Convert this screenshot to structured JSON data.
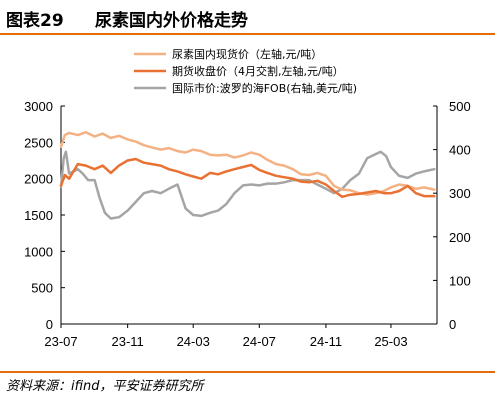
{
  "header": {
    "figure_number": "图表29",
    "title": "尿素国内外价格走势"
  },
  "footer": {
    "source": "资料来源：ifind，平安证券研究所"
  },
  "chart_data": {
    "type": "line",
    "x_tick_labels": [
      "23-07",
      "23-11",
      "24-03",
      "24-07",
      "24-11",
      "25-03"
    ],
    "x_tick_dates": [
      "2023-07-01",
      "2023-11-01",
      "2024-03-01",
      "2024-07-01",
      "2024-11-01",
      "2025-03-01"
    ],
    "x_range": [
      "2023-07-01",
      "2025-05-25"
    ],
    "y_left": {
      "range": [
        0,
        3000
      ],
      "ticks": [
        0,
        500,
        1000,
        1500,
        2000,
        2500,
        3000
      ]
    },
    "y_right": {
      "range": [
        0,
        500
      ],
      "ticks": [
        0,
        100,
        200,
        300,
        400,
        500
      ]
    },
    "legend_position": "top-center",
    "grid": false,
    "series": [
      {
        "name": "尿素国内现货价（左轴,元/吨）",
        "axis": "left",
        "color": "#f4b183",
        "points": [
          [
            "2023-07-01",
            2440
          ],
          [
            "2023-07-08",
            2600
          ],
          [
            "2023-07-16",
            2630
          ],
          [
            "2023-08-01",
            2600
          ],
          [
            "2023-08-16",
            2640
          ],
          [
            "2023-09-01",
            2580
          ],
          [
            "2023-09-16",
            2620
          ],
          [
            "2023-10-01",
            2560
          ],
          [
            "2023-10-16",
            2590
          ],
          [
            "2023-11-01",
            2540
          ],
          [
            "2023-11-16",
            2510
          ],
          [
            "2023-12-01",
            2460
          ],
          [
            "2023-12-16",
            2430
          ],
          [
            "2024-01-01",
            2400
          ],
          [
            "2024-01-16",
            2420
          ],
          [
            "2024-02-01",
            2380
          ],
          [
            "2024-02-16",
            2360
          ],
          [
            "2024-03-01",
            2400
          ],
          [
            "2024-03-16",
            2380
          ],
          [
            "2024-04-01",
            2330
          ],
          [
            "2024-04-16",
            2320
          ],
          [
            "2024-05-01",
            2330
          ],
          [
            "2024-05-16",
            2290
          ],
          [
            "2024-06-01",
            2320
          ],
          [
            "2024-06-16",
            2360
          ],
          [
            "2024-07-01",
            2330
          ],
          [
            "2024-07-16",
            2260
          ],
          [
            "2024-08-01",
            2200
          ],
          [
            "2024-08-16",
            2180
          ],
          [
            "2024-09-01",
            2130
          ],
          [
            "2024-09-16",
            2060
          ],
          [
            "2024-10-01",
            2050
          ],
          [
            "2024-10-16",
            2080
          ],
          [
            "2024-11-01",
            2040
          ],
          [
            "2024-11-16",
            1900
          ],
          [
            "2024-12-01",
            1850
          ],
          [
            "2024-12-16",
            1840
          ],
          [
            "2025-01-01",
            1800
          ],
          [
            "2025-01-16",
            1780
          ],
          [
            "2025-02-01",
            1800
          ],
          [
            "2025-02-16",
            1830
          ],
          [
            "2025-03-01",
            1880
          ],
          [
            "2025-03-16",
            1920
          ],
          [
            "2025-04-01",
            1900
          ],
          [
            "2025-04-16",
            1860
          ],
          [
            "2025-05-01",
            1880
          ],
          [
            "2025-05-20",
            1850
          ]
        ]
      },
      {
        "name": "期货收盘价（4月交割,左轴,元/吨）",
        "axis": "left",
        "color": "#e97132",
        "points": [
          [
            "2023-07-01",
            1900
          ],
          [
            "2023-07-08",
            2050
          ],
          [
            "2023-07-16",
            2000
          ],
          [
            "2023-08-01",
            2200
          ],
          [
            "2023-08-16",
            2180
          ],
          [
            "2023-09-01",
            2130
          ],
          [
            "2023-09-16",
            2180
          ],
          [
            "2023-10-01",
            2080
          ],
          [
            "2023-10-16",
            2180
          ],
          [
            "2023-11-01",
            2250
          ],
          [
            "2023-11-16",
            2270
          ],
          [
            "2023-12-01",
            2220
          ],
          [
            "2023-12-16",
            2200
          ],
          [
            "2024-01-01",
            2180
          ],
          [
            "2024-01-16",
            2130
          ],
          [
            "2024-02-01",
            2100
          ],
          [
            "2024-02-16",
            2060
          ],
          [
            "2024-03-01",
            2030
          ],
          [
            "2024-03-16",
            2000
          ],
          [
            "2024-04-01",
            2080
          ],
          [
            "2024-04-16",
            2060
          ],
          [
            "2024-05-01",
            2100
          ],
          [
            "2024-05-16",
            2130
          ],
          [
            "2024-06-01",
            2160
          ],
          [
            "2024-06-16",
            2190
          ],
          [
            "2024-07-01",
            2120
          ],
          [
            "2024-07-16",
            2080
          ],
          [
            "2024-08-01",
            2040
          ],
          [
            "2024-08-16",
            2020
          ],
          [
            "2024-09-01",
            2000
          ],
          [
            "2024-09-16",
            1960
          ],
          [
            "2024-10-01",
            1950
          ],
          [
            "2024-10-16",
            1970
          ],
          [
            "2024-11-01",
            1920
          ],
          [
            "2024-11-16",
            1830
          ],
          [
            "2024-12-01",
            1750
          ],
          [
            "2024-12-16",
            1780
          ],
          [
            "2025-01-01",
            1790
          ],
          [
            "2025-01-16",
            1810
          ],
          [
            "2025-02-01",
            1830
          ],
          [
            "2025-02-16",
            1800
          ],
          [
            "2025-03-01",
            1800
          ],
          [
            "2025-03-16",
            1830
          ],
          [
            "2025-04-01",
            1900
          ],
          [
            "2025-04-16",
            1800
          ],
          [
            "2025-05-01",
            1760
          ],
          [
            "2025-05-20",
            1760
          ]
        ]
      },
      {
        "name": "国际市价:波罗的海FOB(右轴,美元/吨)",
        "axis": "right",
        "color": "#a5a5a5",
        "points": [
          [
            "2023-07-01",
            315
          ],
          [
            "2023-07-06",
            380
          ],
          [
            "2023-07-10",
            395
          ],
          [
            "2023-07-16",
            345
          ],
          [
            "2023-07-24",
            350
          ],
          [
            "2023-08-01",
            355
          ],
          [
            "2023-08-10",
            345
          ],
          [
            "2023-08-20",
            330
          ],
          [
            "2023-09-01",
            330
          ],
          [
            "2023-09-10",
            290
          ],
          [
            "2023-09-20",
            255
          ],
          [
            "2023-10-01",
            242
          ],
          [
            "2023-10-16",
            245
          ],
          [
            "2023-11-01",
            260
          ],
          [
            "2023-11-16",
            280
          ],
          [
            "2023-12-01",
            300
          ],
          [
            "2023-12-16",
            305
          ],
          [
            "2024-01-01",
            300
          ],
          [
            "2024-01-16",
            310
          ],
          [
            "2024-02-01",
            320
          ],
          [
            "2024-02-16",
            265
          ],
          [
            "2024-03-01",
            250
          ],
          [
            "2024-03-16",
            248
          ],
          [
            "2024-04-01",
            255
          ],
          [
            "2024-04-16",
            260
          ],
          [
            "2024-05-01",
            275
          ],
          [
            "2024-05-16",
            300
          ],
          [
            "2024-06-01",
            318
          ],
          [
            "2024-06-16",
            320
          ],
          [
            "2024-07-01",
            318
          ],
          [
            "2024-07-16",
            322
          ],
          [
            "2024-08-01",
            322
          ],
          [
            "2024-08-16",
            325
          ],
          [
            "2024-09-01",
            330
          ],
          [
            "2024-09-16",
            330
          ],
          [
            "2024-10-01",
            330
          ],
          [
            "2024-10-16",
            320
          ],
          [
            "2024-11-01",
            310
          ],
          [
            "2024-11-16",
            300
          ],
          [
            "2024-12-01",
            310
          ],
          [
            "2024-12-16",
            330
          ],
          [
            "2025-01-01",
            345
          ],
          [
            "2025-01-16",
            380
          ],
          [
            "2025-02-01",
            390
          ],
          [
            "2025-02-10",
            395
          ],
          [
            "2025-02-20",
            385
          ],
          [
            "2025-03-01",
            360
          ],
          [
            "2025-03-16",
            340
          ],
          [
            "2025-04-01",
            335
          ],
          [
            "2025-04-16",
            345
          ],
          [
            "2025-05-01",
            350
          ],
          [
            "2025-05-20",
            355
          ]
        ]
      }
    ]
  }
}
